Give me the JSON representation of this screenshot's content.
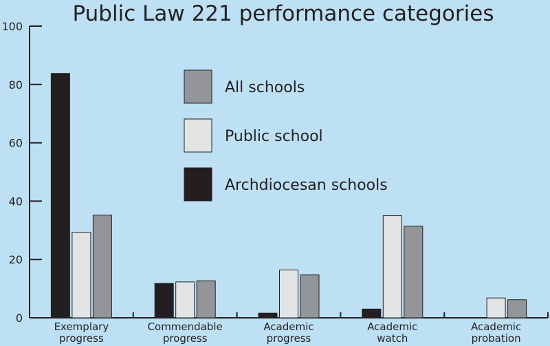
{
  "chart_data": {
    "type": "bar",
    "title": "Public Law 221 performance categories",
    "categories": [
      [
        "Exemplary",
        "progress"
      ],
      [
        "Commendable",
        "progress"
      ],
      [
        "Academic",
        "progress"
      ],
      [
        "Academic",
        "watch"
      ],
      [
        "Academic",
        "probation"
      ]
    ],
    "series": [
      {
        "name": "Archdiocesan schools",
        "color": "#231f20",
        "values": [
          83.8,
          11.8,
          1.6,
          3.0,
          0
        ]
      },
      {
        "name": "Public school",
        "color": "#e2e3e4",
        "values": [
          29.3,
          12.3,
          16.4,
          35.0,
          6.8
        ]
      },
      {
        "name": "All schools",
        "color": "#939598",
        "values": [
          35.2,
          12.7,
          14.7,
          31.4,
          6.2
        ]
      }
    ],
    "legend_order": [
      "All schools",
      "Public school",
      "Archdiocesan schools"
    ],
    "ylim": [
      0,
      100
    ],
    "yticks": [
      0,
      20,
      40,
      60,
      80,
      100
    ],
    "grid": false,
    "legend_position": "top-center"
  }
}
